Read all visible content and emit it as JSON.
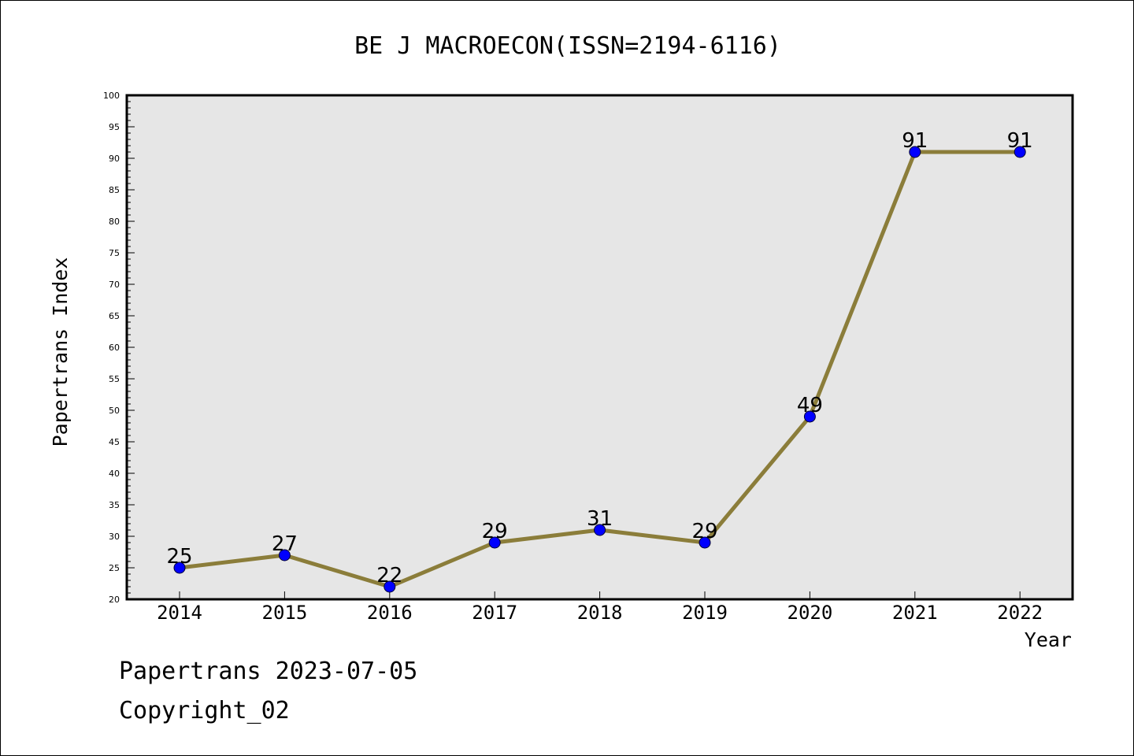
{
  "chart_data": {
    "type": "line",
    "title": "BE J MACROECON(ISSN=2194-6116)",
    "xlabel": "Year",
    "ylabel": "Papertrans Index",
    "categories": [
      "2014",
      "2015",
      "2016",
      "2017",
      "2018",
      "2019",
      "2020",
      "2021",
      "2022"
    ],
    "values": [
      25,
      27,
      22,
      29,
      31,
      29,
      49,
      91,
      91
    ],
    "data_labels": [
      "25",
      "27",
      "22",
      "29",
      "31",
      "29",
      "49",
      "91",
      "91"
    ],
    "ylim": [
      20,
      100
    ],
    "yticks": [
      "20",
      "25",
      "30",
      "35",
      "40",
      "45",
      "50",
      "55",
      "60",
      "65",
      "70",
      "75",
      "80",
      "85",
      "90",
      "95",
      "100"
    ],
    "grid": false,
    "plot_background": "#e6e6e6",
    "line_color": "#8b7d3a",
    "marker_color": "#0000ff"
  },
  "footer": {
    "line1": "Papertrans 2023-07-05",
    "line2": "Copyright_02"
  }
}
